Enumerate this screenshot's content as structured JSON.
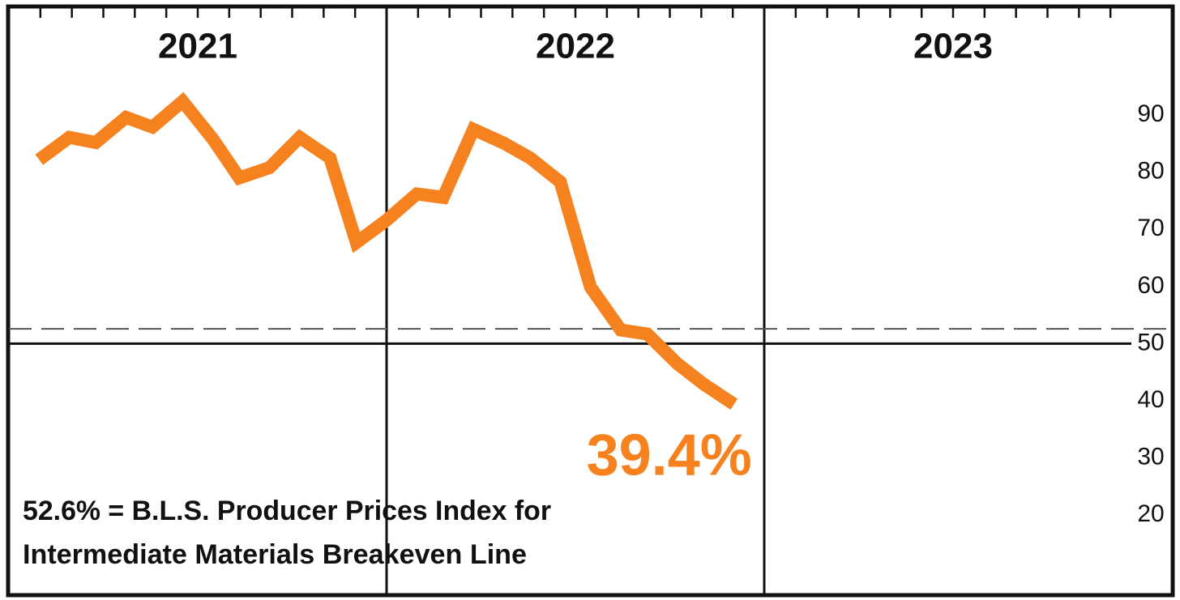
{
  "chart_data": {
    "type": "line",
    "series": [
      {
        "color": "#f5821f",
        "x": [
          2021.08,
          2021.16,
          2021.23,
          2021.31,
          2021.38,
          2021.46,
          2021.54,
          2021.61,
          2021.69,
          2021.77,
          2021.85,
          2021.92,
          2022.0,
          2022.08,
          2022.15,
          2022.23,
          2022.31,
          2022.38,
          2022.46,
          2022.54,
          2022.62,
          2022.69,
          2022.77,
          2022.84,
          2022.92
        ],
        "values": [
          82.2,
          86.1,
          85.2,
          89.6,
          87.9,
          92.4,
          85.8,
          79.0,
          80.8,
          86.1,
          82.5,
          67.7,
          71.6,
          76.2,
          75.6,
          87.5,
          85.1,
          82.5,
          78.3,
          59.9,
          52.4,
          51.7,
          46.5,
          42.9,
          39.4
        ],
        "value_labels": [
          null,
          null,
          null,
          null,
          null,
          null,
          null,
          null,
          null,
          null,
          null,
          null,
          null,
          null,
          null,
          null,
          null,
          null,
          null,
          null,
          null,
          null,
          null,
          null,
          "39.4%"
        ]
      }
    ],
    "xlim": [
      2021,
      2024
    ],
    "xticks": [
      {
        "value": 2021.5,
        "label": "2021"
      },
      {
        "value": 2022.5,
        "label": "2022"
      },
      {
        "value": 2023.5,
        "label": "2023"
      }
    ],
    "ylim": [
      6,
      109
    ],
    "yticks": [
      20,
      30,
      40,
      50,
      60,
      70,
      80,
      90
    ],
    "axis_line": 50,
    "reference_line": 52.6,
    "annotation": [
      "52.6% = B.L.S. Producer Prices Index for",
      "Intermediate Materials Breakeven Line"
    ]
  }
}
